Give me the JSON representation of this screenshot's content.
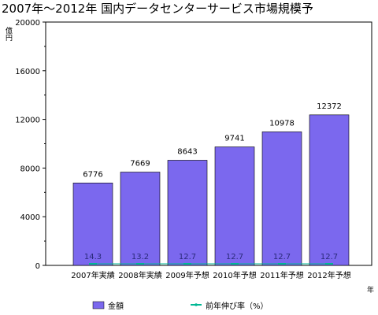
{
  "chart_data": {
    "type": "bar",
    "title": "2007年〜2012年 国内データセンターサービス市場規模予",
    "ylabel": "億円",
    "xlabel": "年",
    "ylim": [
      0,
      20000
    ],
    "yticks": [
      0,
      4000,
      8000,
      12000,
      16000,
      20000
    ],
    "categories": [
      "2007年実績",
      "2008年実績",
      "2009年予想",
      "2010年予想",
      "2011年予想",
      "2012年予想"
    ],
    "series": [
      {
        "name": "金額",
        "values": [
          6776,
          7669,
          8643,
          9741,
          10978,
          12372
        ],
        "color": "#7b68ee"
      },
      {
        "name": "前年伸び率（%）",
        "values": [
          14.3,
          13.2,
          12.7,
          12.7,
          12.7,
          12.7
        ],
        "color": "#00b894"
      }
    ],
    "value_labels": [
      "6776",
      "7669",
      "8643",
      "9741",
      "10978",
      "12372"
    ],
    "rate_labels": [
      "14.3",
      "13.2",
      "12.7",
      "12.7",
      "12.7",
      "12.7"
    ],
    "legend_position": "bottom",
    "grid": false
  }
}
